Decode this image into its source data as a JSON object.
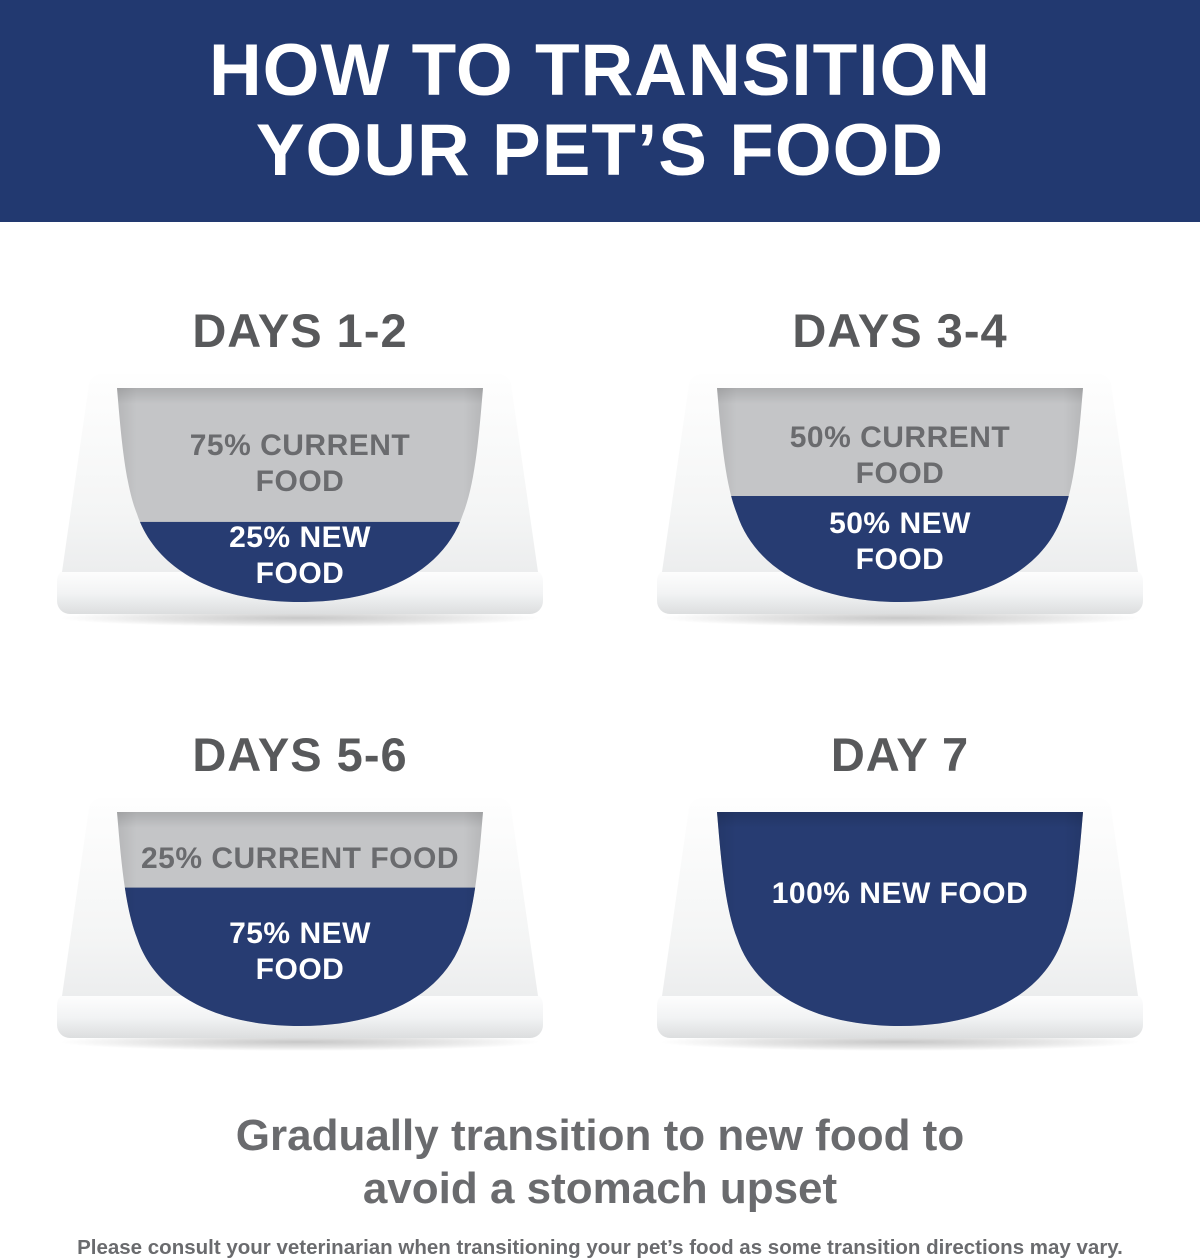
{
  "banner": {
    "title_line1": "HOW TO TRANSITION",
    "title_line2": "YOUR PET’S FOOD"
  },
  "bowls": [
    {
      "title": "DAYS 1-2",
      "current_label": "75% CURRENT FOOD",
      "new_label": "25% NEW FOOD",
      "new_fill_ratio": 0.38
    },
    {
      "title": "DAYS 3-4",
      "current_label": "50% CURRENT FOOD",
      "new_label": "50% NEW FOOD",
      "new_fill_ratio": 0.5
    },
    {
      "title": "DAYS 5-6",
      "current_label": "25% CURRENT FOOD",
      "new_label": "75% NEW FOOD",
      "new_fill_ratio": 0.65
    },
    {
      "title": "DAY 7",
      "current_label": "",
      "new_label": "100% NEW FOOD",
      "new_fill_ratio": 1.0
    }
  ],
  "footer": {
    "message": "Gradually transition to new food to avoid a stomach upset",
    "disclaimer": "Please consult your veterinarian when transitioning your pet’s food as some transition directions may vary."
  },
  "colors": {
    "banner_navy": "#223970",
    "food_navy": "#273C72",
    "food_gray": "#C4C5C7",
    "heading_gray": "#58595B",
    "text_gray": "#6A6B6E"
  }
}
